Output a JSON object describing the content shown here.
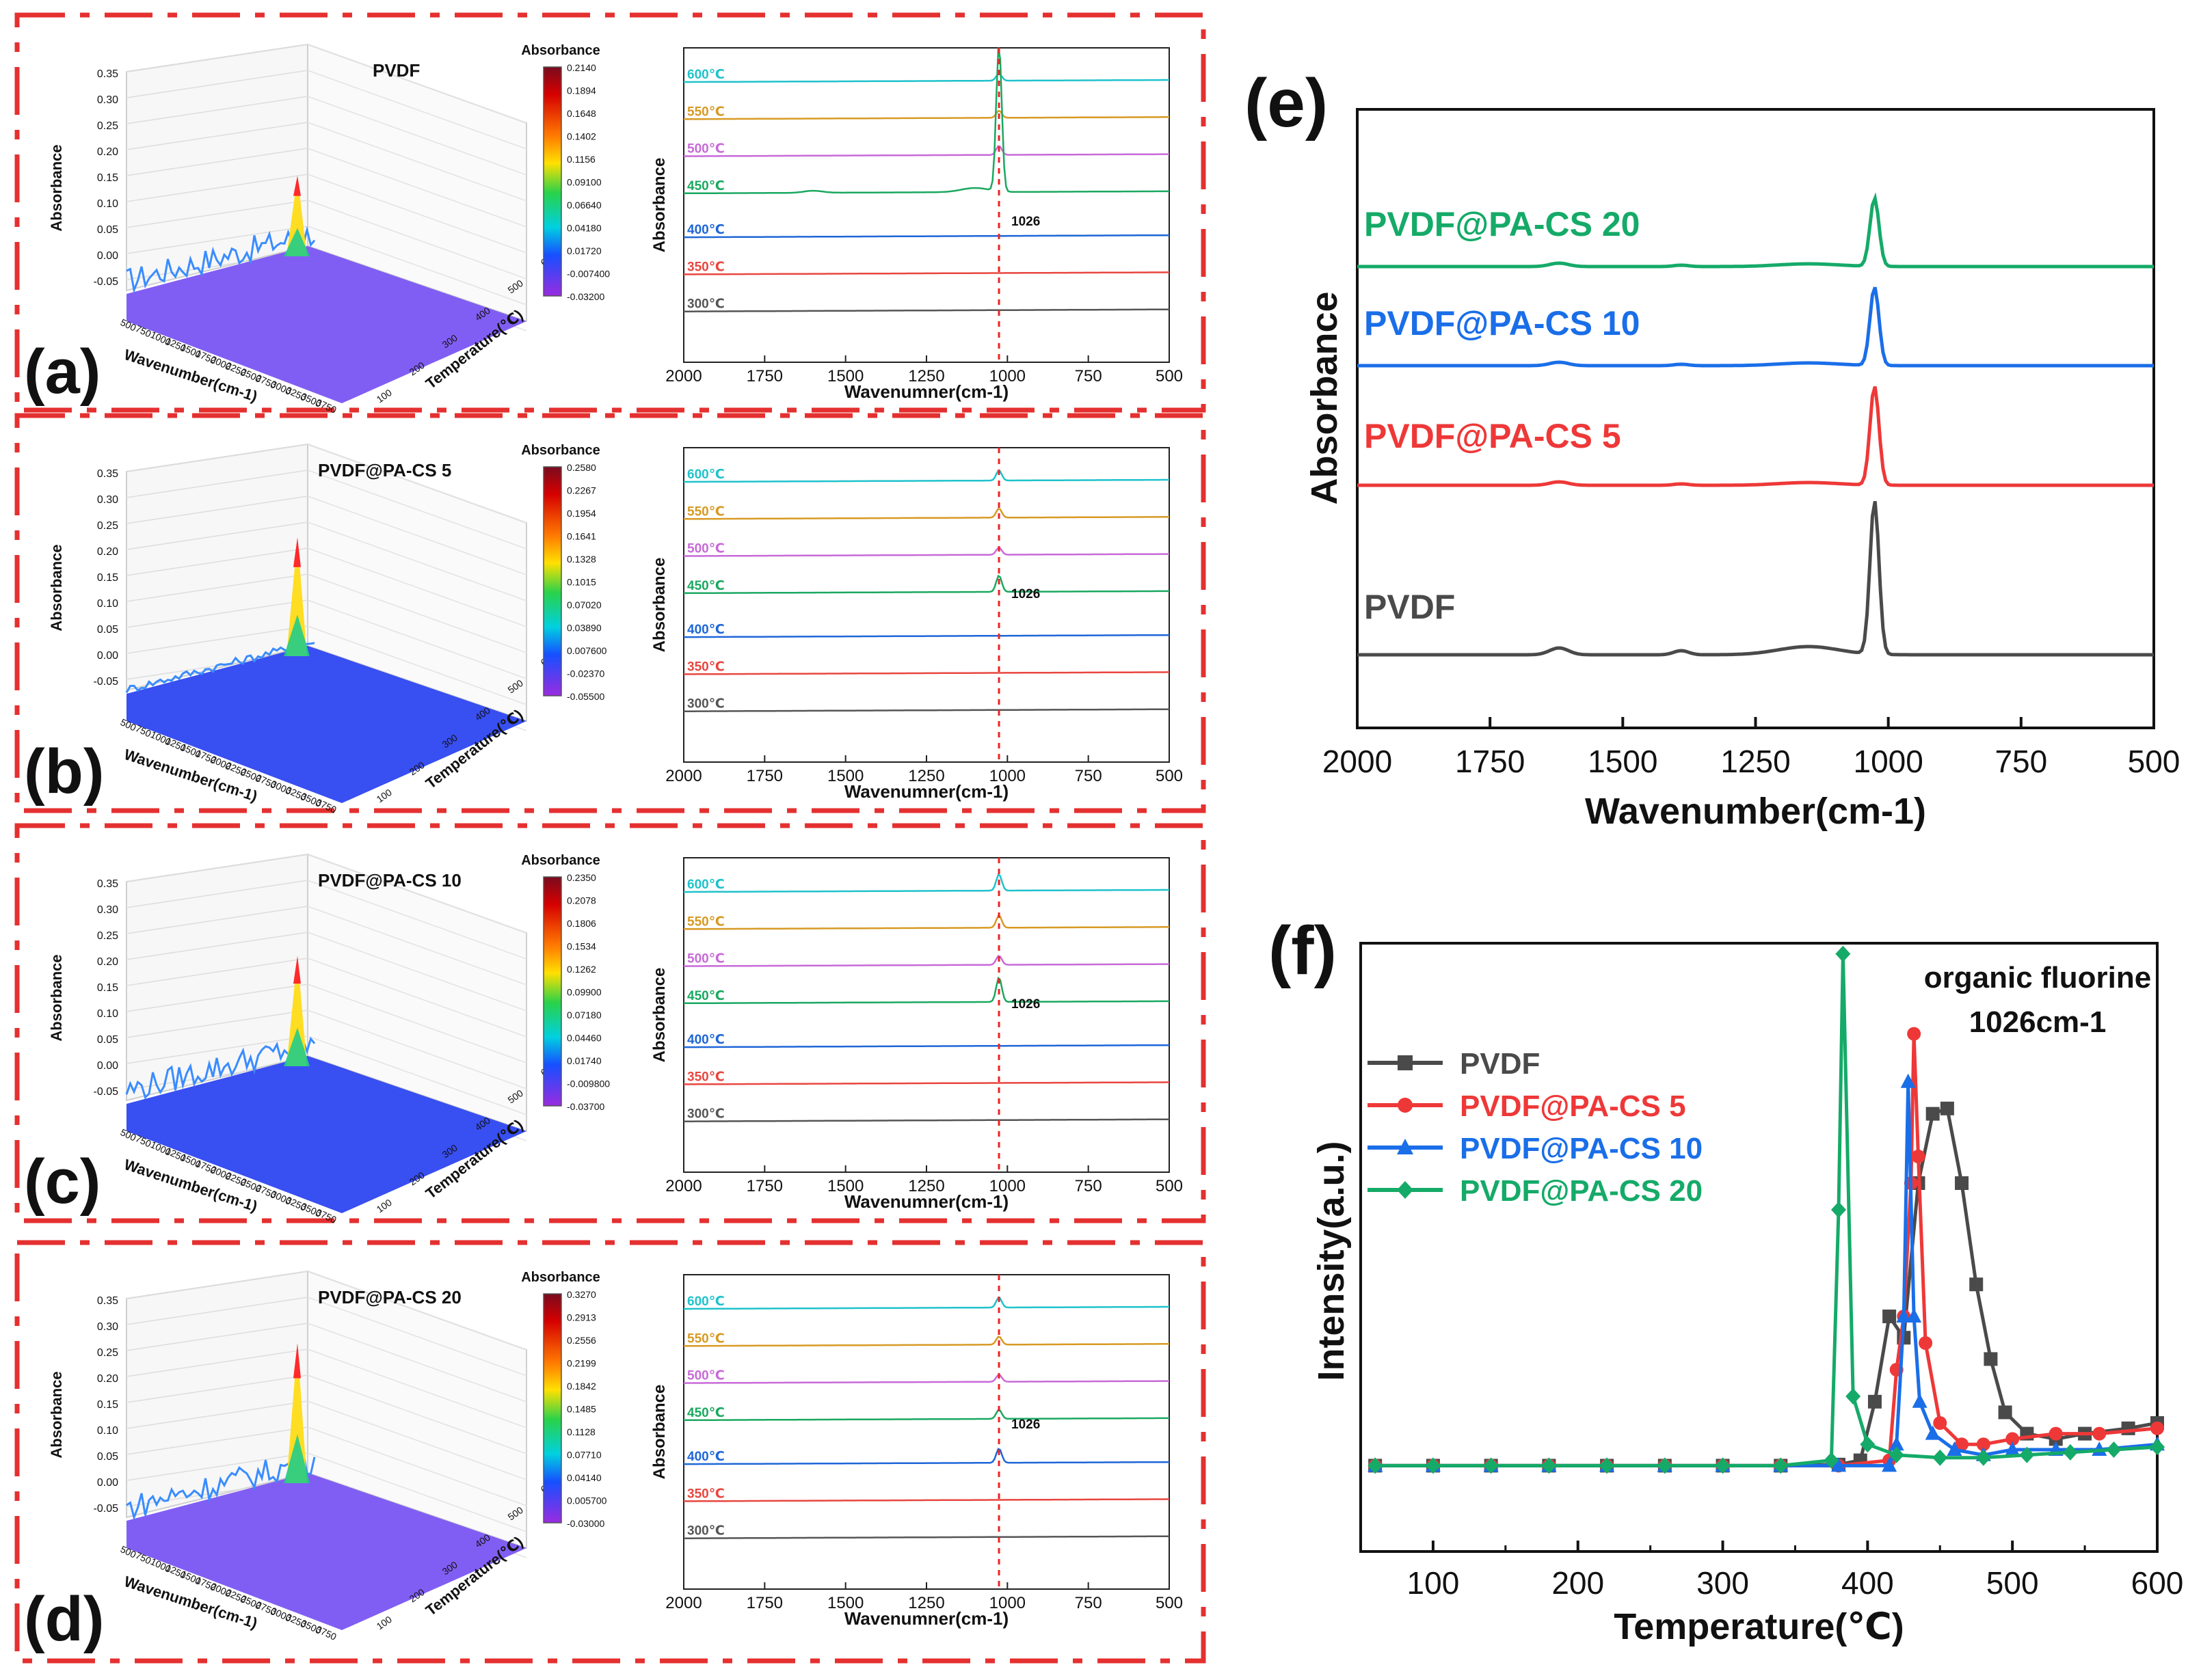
{
  "colors": {
    "frame": "#e53030",
    "axis": "#111111",
    "t300": "#555555",
    "t350": "#e8463f",
    "t400": "#1e66d8",
    "t450": "#1aa860",
    "t500": "#c86ad8",
    "t550": "#d79a24",
    "t600": "#1fc2cc",
    "pvdf": "#4a4a4a",
    "pacs5": "#ee3838",
    "pacs10": "#1a6ee8",
    "pacs20": "#15aa68",
    "surface_blue": "#2d46f0",
    "surface_purple": "#7a55f2",
    "marker_line": "#ee2222"
  },
  "rows": [
    {
      "letter": "(a)",
      "sample": "PVDF",
      "surface_color": "surface_purple",
      "spike_height": 0.19,
      "colorbar_title": "Absorbance",
      "colorbar_ticks": [
        "0.2140",
        "0.1894",
        "0.1648",
        "0.1402",
        "0.1156",
        "0.09100",
        "0.06640",
        "0.04180",
        "0.01720",
        "-0.007400",
        "-0.03200"
      ],
      "surface_zlabel": "Absorbance",
      "surface_xlabel": "Wavenumber(cm-1)",
      "surface_ylabel": "Temperature(℃)",
      "surface_zticks": [
        "0.35",
        "0.30",
        "0.25",
        "0.20",
        "0.15",
        "0.10",
        "0.05",
        "0.00",
        "-0.05"
      ],
      "surface_xticks": [
        "500",
        "750",
        "1000",
        "1250",
        "1500",
        "1750",
        "2000",
        "2250",
        "2500",
        "2750",
        "3000",
        "3250",
        "3500",
        "3750"
      ],
      "surface_yticks": [
        "100",
        "200",
        "300",
        "400",
        "500",
        "600"
      ],
      "spectra_ylabel": "Absorbance",
      "spectra_xlabel": "Wavenumner(cm-1)",
      "spectra_xticks": [
        "2000",
        "1750",
        "1500",
        "1250",
        "1000",
        "750",
        "500"
      ],
      "peak_label": "1026",
      "temps": [
        {
          "label": "600℃",
          "color": "t600",
          "peak": 0.35
        },
        {
          "label": "550℃",
          "color": "t550",
          "peak": 0.35
        },
        {
          "label": "500℃",
          "color": "t500",
          "peak": 0.45
        },
        {
          "label": "450℃",
          "color": "t450",
          "peak": 2.4
        },
        {
          "label": "400℃",
          "color": "t400",
          "peak": 0.0
        },
        {
          "label": "350℃",
          "color": "t350",
          "peak": 0.0
        },
        {
          "label": "300℃",
          "color": "t300",
          "peak": 0.0
        }
      ]
    },
    {
      "letter": "(b)",
      "sample": "PVDF@PA-CS 5",
      "surface_color": "surface_blue",
      "spike_height": 0.28,
      "colorbar_title": "Absorbance",
      "colorbar_ticks": [
        "0.2580",
        "0.2267",
        "0.1954",
        "0.1641",
        "0.1328",
        "0.1015",
        "0.07020",
        "0.03890",
        "0.007600",
        "-0.02370",
        "-0.05500"
      ],
      "surface_zlabel": "Absorbance",
      "surface_xlabel": "Wavenumber(cm-1)",
      "surface_ylabel": "Temperature(℃)",
      "surface_zticks": [
        "0.35",
        "0.30",
        "0.25",
        "0.20",
        "0.15",
        "0.10",
        "0.05",
        "0.00",
        "-0.05"
      ],
      "surface_xticks": [
        "500",
        "750",
        "1000",
        "1250",
        "1500",
        "1750",
        "2000",
        "2250",
        "2500",
        "2750",
        "3000",
        "3250",
        "3500",
        "3750"
      ],
      "surface_yticks": [
        "100",
        "200",
        "300",
        "400",
        "500",
        "600"
      ],
      "spectra_ylabel": "Absorbance",
      "spectra_xlabel": "Wavenumner(cm-1)",
      "spectra_xticks": [
        "2000",
        "1750",
        "1500",
        "1250",
        "1000",
        "750",
        "500"
      ],
      "peak_label": "1026",
      "temps": [
        {
          "label": "600℃",
          "color": "t600",
          "peak": 0.5
        },
        {
          "label": "550℃",
          "color": "t550",
          "peak": 0.45
        },
        {
          "label": "500℃",
          "color": "t500",
          "peak": 0.35
        },
        {
          "label": "450℃",
          "color": "t450",
          "peak": 0.8
        },
        {
          "label": "400℃",
          "color": "t400",
          "peak": 0.0
        },
        {
          "label": "350℃",
          "color": "t350",
          "peak": 0.0
        },
        {
          "label": "300℃",
          "color": "t300",
          "peak": 0.0
        }
      ]
    },
    {
      "letter": "(c)",
      "sample": "PVDF@PA-CS 10",
      "surface_color": "surface_blue",
      "spike_height": 0.26,
      "colorbar_title": "Absorbance",
      "colorbar_ticks": [
        "0.2350",
        "0.2078",
        "0.1806",
        "0.1534",
        "0.1262",
        "0.09900",
        "0.07180",
        "0.04460",
        "0.01740",
        "-0.009800",
        "-0.03700"
      ],
      "surface_zlabel": "Absorbance",
      "surface_xlabel": "Wavenumber(cm-1)",
      "surface_ylabel": "Temperature(℃)",
      "surface_zticks": [
        "0.35",
        "0.30",
        "0.25",
        "0.20",
        "0.15",
        "0.10",
        "0.05",
        "0.00",
        "-0.05"
      ],
      "surface_xticks": [
        "500",
        "750",
        "1000",
        "1250",
        "1500",
        "1750",
        "2000",
        "2250",
        "2500",
        "2750",
        "3000",
        "3250",
        "3500",
        "3750"
      ],
      "surface_yticks": [
        "100",
        "200",
        "300",
        "400",
        "500",
        "600"
      ],
      "spectra_ylabel": "Absorbance",
      "spectra_xlabel": "Wavenumner(cm-1)",
      "spectra_xticks": [
        "2000",
        "1750",
        "1500",
        "1250",
        "1000",
        "750",
        "500"
      ],
      "peak_label": "1026",
      "temps": [
        {
          "label": "600℃",
          "color": "t600",
          "peak": 0.8
        },
        {
          "label": "550℃",
          "color": "t550",
          "peak": 0.6
        },
        {
          "label": "500℃",
          "color": "t500",
          "peak": 0.45
        },
        {
          "label": "450℃",
          "color": "t450",
          "peak": 1.2
        },
        {
          "label": "400℃",
          "color": "t400",
          "peak": 0.0
        },
        {
          "label": "350℃",
          "color": "t350",
          "peak": 0.0
        },
        {
          "label": "300℃",
          "color": "t300",
          "peak": 0.0
        }
      ]
    },
    {
      "letter": "(d)",
      "sample": "PVDF@PA-CS 20",
      "surface_color": "surface_purple",
      "spike_height": 0.33,
      "colorbar_title": "Absorbance",
      "colorbar_ticks": [
        "0.3270",
        "0.2913",
        "0.2556",
        "0.2199",
        "0.1842",
        "0.1485",
        "0.1128",
        "0.07710",
        "0.04140",
        "0.005700",
        "-0.03000"
      ],
      "surface_zlabel": "Absorbance",
      "surface_xlabel": "Wavenumber(cm-1)",
      "surface_ylabel": "Temperature(℃)",
      "surface_zticks": [
        "0.35",
        "0.30",
        "0.25",
        "0.20",
        "0.15",
        "0.10",
        "0.05",
        "0.00",
        "-0.05"
      ],
      "surface_xticks": [
        "500",
        "750",
        "1000",
        "1250",
        "1500",
        "1750",
        "2000",
        "2250",
        "2500",
        "2750",
        "3000",
        "3250",
        "3500",
        "3750"
      ],
      "surface_yticks": [
        "100",
        "200",
        "300",
        "400",
        "500",
        "600"
      ],
      "spectra_ylabel": "Absorbance",
      "spectra_xlabel": "Wavenumner(cm-1)",
      "spectra_xticks": [
        "2000",
        "1750",
        "1500",
        "1250",
        "1000",
        "750",
        "500"
      ],
      "peak_label": "1026",
      "temps": [
        {
          "label": "600℃",
          "color": "t600",
          "peak": 0.5
        },
        {
          "label": "550℃",
          "color": "t550",
          "peak": 0.4
        },
        {
          "label": "500℃",
          "color": "t500",
          "peak": 0.35
        },
        {
          "label": "450℃",
          "color": "t450",
          "peak": 0.45
        },
        {
          "label": "400℃",
          "color": "t400",
          "peak": 0.7
        },
        {
          "label": "350℃",
          "color": "t350",
          "peak": 0.0
        },
        {
          "label": "300℃",
          "color": "t300",
          "peak": 0.0
        }
      ]
    }
  ],
  "chart_data": [
    {
      "panel": "(e)",
      "type": "line",
      "xlabel": "Wavenumber(cm-1)",
      "ylabel": "Absorbance",
      "xlim": [
        2000,
        500
      ],
      "x_ticks": [
        "2000",
        "1750",
        "1500",
        "1250",
        "1000",
        "750",
        "500"
      ],
      "series": [
        {
          "name": "PVDF@PA-CS 20",
          "color": "pacs20",
          "peak_x": 1026,
          "peak": 1.0
        },
        {
          "name": "PVDF@PA-CS 10",
          "color": "pacs10",
          "peak_x": 1026,
          "peak": 1.15
        },
        {
          "name": "PVDF@PA-CS 5",
          "color": "pacs5",
          "peak_x": 1026,
          "peak": 1.45
        },
        {
          "name": "PVDF",
          "color": "pvdf",
          "peak_x": 1026,
          "peak": 2.2
        }
      ]
    },
    {
      "panel": "(f)",
      "type": "line",
      "xlabel": "Temperature(℃)",
      "ylabel": "Intensity(a.u.)",
      "xlim": [
        50,
        600
      ],
      "ylim": [
        0,
        1
      ],
      "x_ticks": [
        "100",
        "200",
        "300",
        "400",
        "500",
        "600"
      ],
      "annotation": "organic fluorine",
      "annotation2": "1026cm-1",
      "legend": "top-left",
      "series": [
        {
          "name": "PVDF",
          "color": "pvdf",
          "marker": "square",
          "x": [
            60,
            100,
            140,
            180,
            220,
            260,
            300,
            340,
            380,
            395,
            405,
            415,
            425,
            435,
            445,
            455,
            465,
            475,
            485,
            495,
            510,
            530,
            550,
            580,
            600
          ],
          "y": [
            0.02,
            0.02,
            0.02,
            0.02,
            0.02,
            0.02,
            0.02,
            0.02,
            0.022,
            0.03,
            0.14,
            0.3,
            0.26,
            0.55,
            0.68,
            0.69,
            0.55,
            0.36,
            0.22,
            0.12,
            0.08,
            0.07,
            0.08,
            0.09,
            0.1
          ]
        },
        {
          "name": "PVDF@PA-CS 5",
          "color": "pacs5",
          "marker": "circle",
          "x": [
            60,
            100,
            140,
            180,
            220,
            260,
            300,
            340,
            380,
            415,
            420,
            425,
            430,
            432,
            435,
            440,
            450,
            465,
            480,
            500,
            530,
            560,
            600
          ],
          "y": [
            0.02,
            0.02,
            0.02,
            0.02,
            0.02,
            0.02,
            0.02,
            0.02,
            0.02,
            0.03,
            0.2,
            0.3,
            0.55,
            0.83,
            0.6,
            0.25,
            0.1,
            0.06,
            0.06,
            0.07,
            0.08,
            0.08,
            0.09
          ]
        },
        {
          "name": "PVDF@PA-CS 10",
          "color": "pacs10",
          "marker": "triangle",
          "x": [
            60,
            100,
            140,
            180,
            220,
            260,
            300,
            340,
            380,
            415,
            420,
            425,
            428,
            432,
            436,
            445,
            460,
            480,
            500,
            530,
            560,
            600
          ],
          "y": [
            0.02,
            0.02,
            0.02,
            0.02,
            0.02,
            0.02,
            0.02,
            0.02,
            0.02,
            0.02,
            0.06,
            0.3,
            0.74,
            0.3,
            0.14,
            0.08,
            0.05,
            0.04,
            0.05,
            0.05,
            0.05,
            0.06
          ]
        },
        {
          "name": "PVDF@PA-CS 20",
          "color": "pacs20",
          "marker": "diamond",
          "x": [
            60,
            100,
            140,
            180,
            220,
            260,
            300,
            340,
            375,
            380,
            383,
            390,
            400,
            420,
            450,
            480,
            510,
            540,
            570,
            600
          ],
          "y": [
            0.02,
            0.02,
            0.02,
            0.02,
            0.02,
            0.02,
            0.02,
            0.02,
            0.03,
            0.5,
            0.98,
            0.15,
            0.06,
            0.04,
            0.035,
            0.035,
            0.04,
            0.045,
            0.05,
            0.055
          ]
        }
      ]
    }
  ],
  "panel_e": {
    "letter": "(e)"
  },
  "panel_f": {
    "letter": "(f)"
  }
}
